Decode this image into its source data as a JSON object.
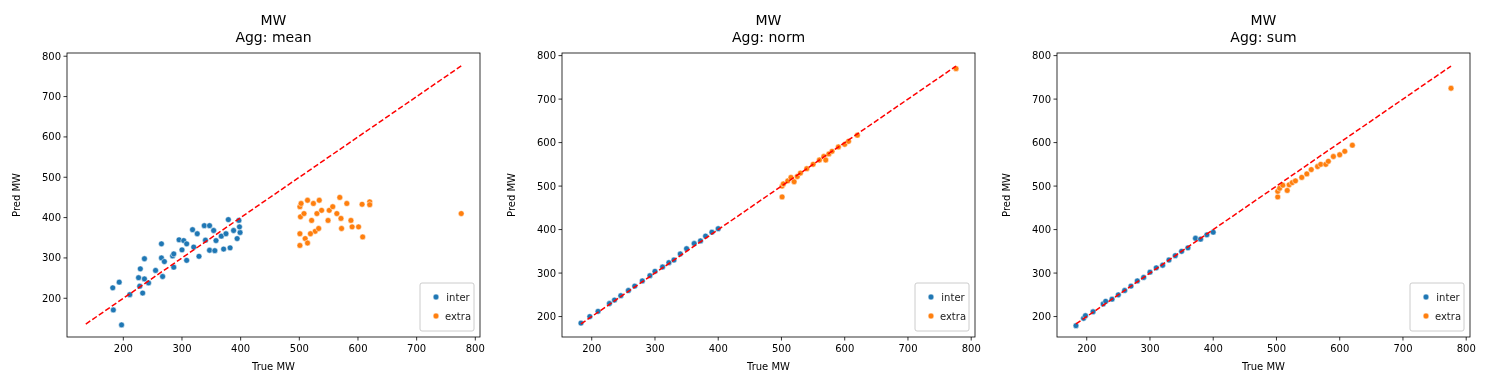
{
  "chart_data": [
    {
      "type": "scatter",
      "title": "MW\nAgg: mean",
      "xlabel": "True MW",
      "ylabel": "Pred MW",
      "xlim": [
        104,
        808
      ],
      "ylim": [
        104,
        808
      ],
      "xticks": [
        200,
        300,
        400,
        500,
        600,
        700,
        800
      ],
      "yticks": [
        200,
        300,
        400,
        500,
        600,
        700,
        800
      ],
      "legend": "bottom right",
      "marker": "circle",
      "grid": false,
      "series": [
        {
          "name": "inter",
          "color": "#1f77b4",
          "x": [
            182,
            183,
            193,
            197,
            211,
            226,
            229,
            228,
            233,
            236,
            236,
            243,
            255,
            265,
            265,
            267,
            270,
            284,
            286,
            295,
            300,
            303,
            308,
            318,
            320,
            326,
            329,
            338,
            340,
            347,
            347,
            356,
            354,
            367,
            371,
            379,
            382,
            375,
            388,
            394,
            397,
            399,
            398,
            308,
            286,
            358
          ],
          "values": [
            226,
            171,
            240,
            134,
            209,
            251,
            273,
            230,
            213,
            298,
            248,
            238,
            269,
            335,
            300,
            254,
            291,
            305,
            277,
            345,
            320,
            343,
            294,
            370,
            327,
            360,
            304,
            380,
            344,
            380,
            319,
            318,
            368,
            354,
            322,
            395,
            325,
            360,
            368,
            348,
            393,
            363,
            377,
            335,
            310,
            343
          ]
        },
        {
          "name": "extra",
          "color": "#ff7f0e",
          "x": [
            501,
            501,
            501,
            502,
            503,
            508,
            510,
            514,
            514,
            521,
            524,
            530,
            527,
            534,
            538,
            533,
            551,
            564,
            569,
            572,
            571,
            581,
            588,
            590,
            601,
            608,
            607,
            620,
            620,
            776,
            557,
            549,
            519
          ],
          "values": [
            360,
            331,
            427,
            402,
            435,
            410,
            348,
            443,
            337,
            393,
            435,
            410,
            366,
            443,
            418,
            373,
            418,
            410,
            450,
            373,
            398,
            435,
            393,
            377,
            377,
            352,
            433,
            439,
            432,
            410,
            427,
            393,
            360
          ]
        },
        {
          "type": "line",
          "color": "#ff0000",
          "line_style": "dashed",
          "marker": "none",
          "x": [
            136,
            776
          ],
          "values": [
            136,
            776
          ]
        }
      ]
    },
    {
      "type": "scatter",
      "title": "MW\nAgg: norm",
      "xlabel": "True MW",
      "ylabel": "Pred MW",
      "xlim": [
        153,
        806
      ],
      "ylim": [
        153,
        806
      ],
      "xticks": [
        200,
        300,
        400,
        500,
        600,
        700,
        800
      ],
      "yticks": [
        200,
        300,
        400,
        500,
        600,
        700,
        800
      ],
      "legend": "bottom right",
      "marker": "circle",
      "grid": false,
      "series": [
        {
          "name": "inter",
          "color": "#1f77b4",
          "x": [
            183,
            197,
            210,
            228,
            236,
            246,
            258,
            268,
            280,
            292,
            300,
            312,
            322,
            330,
            340,
            350,
            362,
            372,
            380,
            390,
            400
          ],
          "values": [
            185,
            200,
            212,
            230,
            238,
            248,
            260,
            270,
            282,
            294,
            304,
            314,
            324,
            330,
            344,
            356,
            368,
            374,
            385,
            394,
            402
          ]
        },
        {
          "name": "extra",
          "color": "#ff7f0e",
          "x": [
            501,
            501,
            503,
            510,
            515,
            520,
            525,
            530,
            540,
            550,
            560,
            567,
            570,
            575,
            580,
            590,
            600,
            606,
            620,
            776
          ],
          "values": [
            475,
            500,
            505,
            512,
            520,
            510,
            522,
            530,
            540,
            550,
            560,
            568,
            560,
            574,
            580,
            590,
            596,
            603,
            617,
            770
          ]
        },
        {
          "type": "line",
          "color": "#ff0000",
          "line_style": "dashed",
          "marker": "none",
          "x": [
            183,
            776
          ],
          "values": [
            183,
            776
          ]
        }
      ]
    },
    {
      "type": "scatter",
      "title": "MW\nAgg: sum",
      "xlabel": "True MW",
      "ylabel": "Pred MW",
      "xlim": [
        153,
        806
      ],
      "ylim": [
        153,
        806
      ],
      "xticks": [
        200,
        300,
        400,
        500,
        600,
        700,
        800
      ],
      "yticks": [
        200,
        300,
        400,
        500,
        600,
        700,
        800
      ],
      "legend": "bottom right",
      "marker": "circle",
      "grid": false,
      "series": [
        {
          "name": "inter",
          "color": "#1f77b4",
          "x": [
            183,
            195,
            198,
            210,
            226,
            230,
            240,
            250,
            260,
            270,
            280,
            290,
            300,
            310,
            320,
            330,
            340,
            350,
            360,
            372,
            380,
            390,
            400
          ],
          "values": [
            179,
            196,
            202,
            211,
            229,
            235,
            240,
            250,
            260,
            270,
            282,
            290,
            302,
            312,
            318,
            330,
            340,
            350,
            358,
            380,
            378,
            388,
            394
          ]
        },
        {
          "name": "extra",
          "color": "#ff7f0e",
          "x": [
            502,
            502,
            505,
            510,
            517,
            520,
            525,
            530,
            540,
            548,
            555,
            565,
            570,
            578,
            582,
            590,
            600,
            608,
            620,
            776
          ],
          "values": [
            475,
            488,
            495,
            502,
            490,
            503,
            508,
            512,
            520,
            528,
            538,
            545,
            550,
            550,
            557,
            568,
            572,
            580,
            594,
            725
          ]
        },
        {
          "type": "line",
          "color": "#ff0000",
          "line_style": "dashed",
          "marker": "none",
          "x": [
            183,
            776
          ],
          "values": [
            183,
            776
          ]
        }
      ]
    }
  ]
}
